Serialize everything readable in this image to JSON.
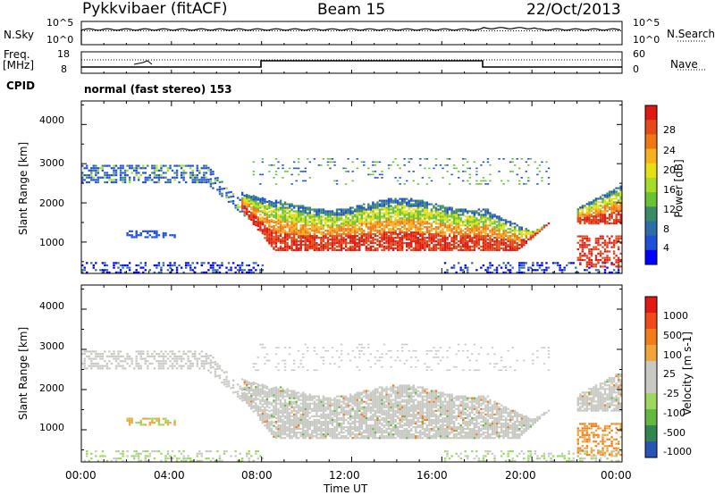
{
  "header": {
    "station": "Pykkvibaer (fitACF)",
    "beam": "Beam 15",
    "date": "22/Oct/2013"
  },
  "params": {
    "nsky_label": "N.Sky",
    "nsearch_label": "N.Search",
    "freq_label_line1": "Freq.",
    "freq_label_line2": "[MHz]",
    "nave_label": "Nave",
    "cpid_label": "CPID",
    "left_top_ticks": [
      "10^5",
      "10^0"
    ],
    "right_top_ticks": [
      "10^5",
      "10^0"
    ],
    "left_freq_ticks": [
      "18",
      "8"
    ],
    "right_nave_ticks": [
      "60",
      "0"
    ],
    "cpid_text": "normal (fast stereo) 153"
  },
  "chart_data": [
    {
      "type": "heatmap",
      "name": "power",
      "ylabel": "Slant Range [km]",
      "yticks": [
        1000,
        2000,
        3000,
        4000
      ],
      "ylim": [
        200,
        4600
      ],
      "colorbar": {
        "label": "Power [dB]",
        "ticks": [
          "28",
          "24",
          "20",
          "16",
          "12",
          "8",
          "4"
        ],
        "colors": [
          "#0000ff",
          "#1e50d8",
          "#2e6ea6",
          "#3c8b68",
          "#69c234",
          "#a5dc27",
          "#e4e013",
          "#f7b11e",
          "#f07814",
          "#e54a18",
          "#e01a12"
        ]
      }
    },
    {
      "type": "heatmap",
      "name": "velocity",
      "ylabel": "Slant Range [km]",
      "yticks": [
        1000,
        2000,
        3000,
        4000
      ],
      "ylim": [
        200,
        4600
      ],
      "colorbar": {
        "label": "Velocity [m s-1]",
        "ticks": [
          "1000",
          "500",
          "100",
          "25",
          "-25",
          "-100",
          "-500",
          "-1000"
        ],
        "colors": [
          "#2854b4",
          "#2f8650",
          "#64b840",
          "#9ed760",
          "#c9c9c4",
          "#c9c9c4",
          "#f2a43c",
          "#f27c1a",
          "#f04a1a",
          "#e01a12"
        ]
      }
    }
  ],
  "x_axis": {
    "ticks": [
      "00:00",
      "04:00",
      "08:00",
      "12:00",
      "16:00",
      "20:00",
      "00:00"
    ],
    "label": "Time UT"
  },
  "colors": {
    "axis": "#000000",
    "ground_scatter": "#c0c0c0"
  }
}
